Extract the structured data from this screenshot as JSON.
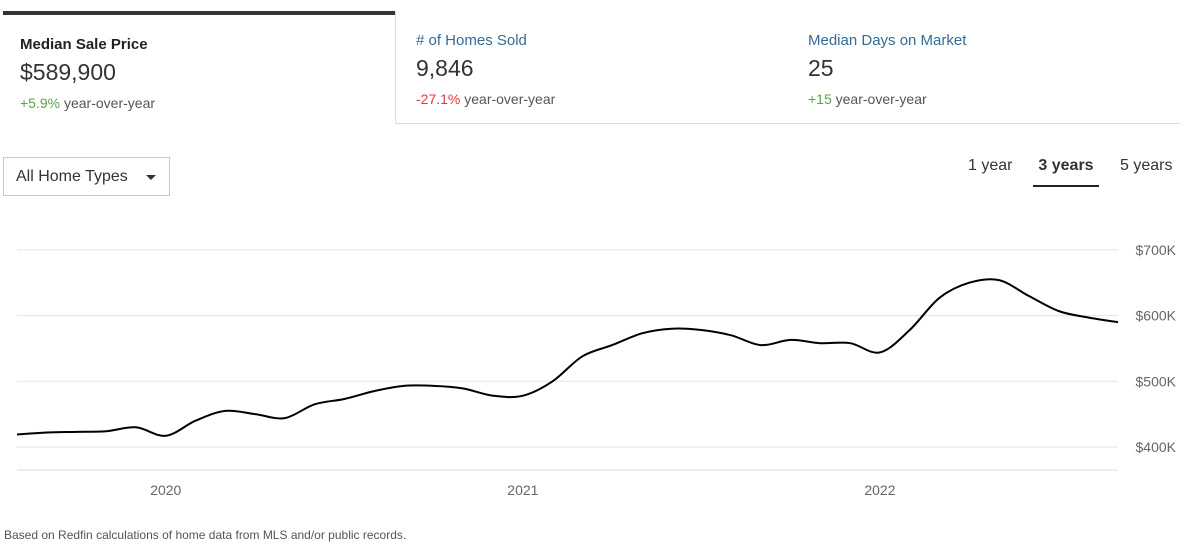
{
  "tabs": [
    {
      "label": "Median Sale Price",
      "value": "$589,900",
      "change": "+5.9%",
      "change_suffix": " year-over-year",
      "change_color": "#5aa34a"
    },
    {
      "label": "# of Homes Sold",
      "value": "9,846",
      "change": "-27.1%",
      "change_suffix": " year-over-year",
      "change_color": "#e5383b"
    },
    {
      "label": "Median Days on Market",
      "value": "25",
      "change": "+15",
      "change_suffix": " year-over-year",
      "change_color": "#5aa34a"
    }
  ],
  "filter": {
    "selected": "All Home Types"
  },
  "ranges": {
    "one": "1 year",
    "three": "3 years",
    "five": "5 years",
    "selected": "3 years"
  },
  "footnote": "Based on Redfin calculations of home data from MLS and/or public records.",
  "chart_data": {
    "type": "line",
    "x_ticks": [
      "2020",
      "2021",
      "2022"
    ],
    "y_ticks": [
      "$400K",
      "$500K",
      "$600K",
      "$700K"
    ],
    "ylim": [
      365,
      715
    ],
    "grid": true,
    "line_color": "#000000",
    "series": [
      {
        "x": [
          "2019-08",
          "2019-09",
          "2019-10",
          "2019-11",
          "2019-12",
          "2020-01",
          "2020-02",
          "2020-03",
          "2020-04",
          "2020-05",
          "2020-06",
          "2020-07",
          "2020-08",
          "2020-09",
          "2020-10",
          "2020-11",
          "2020-12",
          "2021-01",
          "2021-02",
          "2021-03",
          "2021-04",
          "2021-05",
          "2021-06",
          "2021-07",
          "2021-08",
          "2021-09",
          "2021-10",
          "2021-11",
          "2021-12",
          "2022-01",
          "2022-02",
          "2022-03",
          "2022-04",
          "2022-05",
          "2022-06",
          "2022-07",
          "2022-08",
          "2022-09"
        ],
        "values": [
          419,
          422,
          423,
          424,
          430,
          417,
          440,
          455,
          450,
          444,
          465,
          473,
          485,
          493,
          493,
          489,
          478,
          478,
          500,
          538,
          555,
          573,
          580,
          578,
          570,
          555,
          563,
          558,
          558,
          544,
          578,
          627,
          650,
          654,
          630,
          607,
          597,
          590
        ]
      }
    ]
  }
}
